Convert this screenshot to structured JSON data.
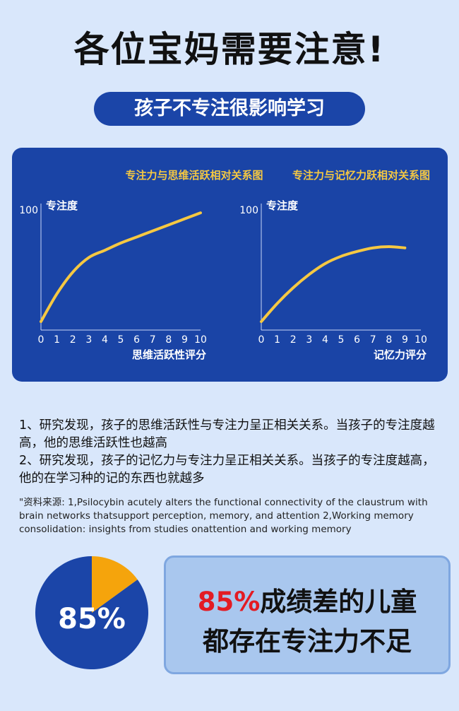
{
  "title": "各位宝妈需要注意!",
  "subtitle": "孩子不专注很影响学习",
  "chart_data": [
    {
      "type": "line",
      "title": "专注力与思维活跃相对关系图",
      "ylabel": "专注度",
      "xlabel": "思维活跃性评分",
      "y_tick": "100",
      "ylim": [
        0,
        100
      ],
      "xlim": [
        0,
        10
      ],
      "x_ticks": [
        "0",
        "1",
        "2",
        "3",
        "4",
        "5",
        "6",
        "7",
        "8",
        "9",
        "10"
      ],
      "x": [
        0,
        1,
        2,
        3,
        4,
        5,
        6,
        7,
        8,
        9,
        10
      ],
      "y": [
        7,
        30,
        48,
        60,
        66,
        72,
        77,
        82,
        87,
        92,
        97
      ],
      "color": "#f5c842"
    },
    {
      "type": "line",
      "title": "专注力与记忆力跃相对关系图",
      "ylabel": "专注度",
      "xlabel": "记忆力评分",
      "y_tick": "100",
      "ylim": [
        0,
        100
      ],
      "xlim": [
        0,
        10
      ],
      "x_ticks": [
        "0",
        "1",
        "2",
        "3",
        "4",
        "5",
        "6",
        "7",
        "8",
        "9",
        "10"
      ],
      "x": [
        0,
        1,
        2,
        3,
        4,
        5,
        6,
        7,
        8,
        9
      ],
      "y": [
        7,
        22,
        35,
        46,
        55,
        61,
        65,
        68,
        69,
        68
      ],
      "color": "#f5c842"
    },
    {
      "type": "pie",
      "values": [
        85,
        15
      ],
      "label": "85%",
      "colors": [
        "#1b45a8",
        "#f5a40c"
      ]
    }
  ],
  "paragraphs": [
    "1、研究发现，孩子的思维活跃性与专注力呈正相关关系。当孩子的专注度越高，他的思维活跃性也越高",
    "2、研究发现，孩子的记忆力与专注力呈正相关关系。当孩子的专注度越高，他的在学习种的记的东西也就越多"
  ],
  "source": "\"资料来源: 1,Psilocybin acutely alters the functional connectivity of the claustrum with brain networks thatsupport perception, memory, and attention 2,Working memory consolidation: insights from studies onattention and working memory",
  "callout": {
    "pct": "85%",
    "line1": "成绩差的儿童",
    "line2": "都存在专注力不足"
  }
}
